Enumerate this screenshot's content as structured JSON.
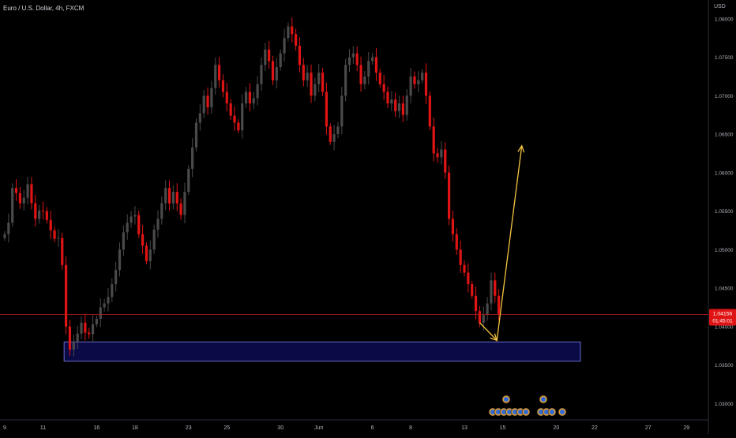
{
  "header": {
    "symbol_title": "Euro / U.S. Dollar, 4h, FXCM",
    "currency": "USD"
  },
  "price_tag": {
    "price": "1.04156",
    "countdown": "01:45:01"
  },
  "colors": {
    "background": "#000000",
    "up_candle": "#4a4a4a",
    "down_candle": "#e01414",
    "zone_fill": "#0b0b4a",
    "zone_border": "#6a6ac8",
    "arrow": "#f5c542",
    "price_line": "#b71c1c",
    "price_tag_bg": "#e01414"
  },
  "chart_data": {
    "type": "candlestick",
    "symbol": "EUR/USD",
    "timeframe": "4h",
    "source": "FXCM",
    "ylim": [
      1.029,
      1.081
    ],
    "y_ticks": [
      {
        "value": 1.03,
        "label": "1.03000"
      },
      {
        "value": 1.035,
        "label": "1.03500"
      },
      {
        "value": 1.04,
        "label": "1.04000"
      },
      {
        "value": 1.045,
        "label": "1.04500"
      },
      {
        "value": 1.05,
        "label": "1.05000"
      },
      {
        "value": 1.055,
        "label": "1.05500"
      },
      {
        "value": 1.06,
        "label": "1.06000"
      },
      {
        "value": 1.065,
        "label": "1.06500"
      },
      {
        "value": 1.07,
        "label": "1.07000"
      },
      {
        "value": 1.075,
        "label": "1.07500"
      },
      {
        "value": 1.08,
        "label": "1.08000"
      }
    ],
    "x_ticks": [
      {
        "index": 0,
        "label": "9"
      },
      {
        "index": 10,
        "label": "11"
      },
      {
        "index": 24,
        "label": "16"
      },
      {
        "index": 34,
        "label": "18"
      },
      {
        "index": 48,
        "label": "23"
      },
      {
        "index": 58,
        "label": "25"
      },
      {
        "index": 72,
        "label": "30"
      },
      {
        "index": 82,
        "label": "Jun"
      },
      {
        "index": 96,
        "label": "6"
      },
      {
        "index": 106,
        "label": "8"
      },
      {
        "index": 120,
        "label": "13"
      },
      {
        "index": 130,
        "label": "15"
      },
      {
        "index": 144,
        "label": "20"
      },
      {
        "index": 154,
        "label": "22"
      },
      {
        "index": 168,
        "label": "27"
      },
      {
        "index": 178,
        "label": "29"
      }
    ],
    "waypoints": [
      [
        0,
        1.052
      ],
      [
        1,
        1.0535
      ],
      [
        2,
        1.058
      ],
      [
        4,
        1.056
      ],
      [
        6,
        1.0585
      ],
      [
        8,
        1.054
      ],
      [
        10,
        1.055
      ],
      [
        12,
        1.0525
      ],
      [
        14,
        1.0515
      ],
      [
        15,
        1.048
      ],
      [
        16,
        1.04
      ],
      [
        17,
        1.037
      ],
      [
        18,
        1.038
      ],
      [
        20,
        1.0405
      ],
      [
        22,
        1.039
      ],
      [
        24,
        1.041
      ],
      [
        26,
        1.043
      ],
      [
        28,
        1.0455
      ],
      [
        30,
        1.05
      ],
      [
        32,
        1.0535
      ],
      [
        34,
        1.0545
      ],
      [
        35,
        1.052
      ],
      [
        36,
        1.0505
      ],
      [
        37,
        1.0485
      ],
      [
        38,
        1.05
      ],
      [
        40,
        1.054
      ],
      [
        42,
        1.058
      ],
      [
        43,
        1.056
      ],
      [
        44,
        1.0575
      ],
      [
        45,
        1.056
      ],
      [
        46,
        1.0545
      ],
      [
        47,
        1.0575
      ],
      [
        48,
        1.0605
      ],
      [
        50,
        1.0665
      ],
      [
        52,
        1.07
      ],
      [
        53,
        1.0685
      ],
      [
        54,
        1.071
      ],
      [
        55,
        1.074
      ],
      [
        56,
        1.072
      ],
      [
        57,
        1.0705
      ],
      [
        58,
        1.069
      ],
      [
        60,
        1.0665
      ],
      [
        61,
        1.0655
      ],
      [
        62,
        1.069
      ],
      [
        63,
        1.0705
      ],
      [
        64,
        1.069
      ],
      [
        66,
        1.0715
      ],
      [
        67,
        1.074
      ],
      [
        68,
        1.076
      ],
      [
        69,
        1.0745
      ],
      [
        70,
        1.072
      ],
      [
        72,
        1.0755
      ],
      [
        73,
        1.0775
      ],
      [
        74,
        1.079
      ],
      [
        75,
        1.078
      ],
      [
        76,
        1.0765
      ],
      [
        77,
        1.074
      ],
      [
        78,
        1.072
      ],
      [
        79,
        1.073
      ],
      [
        80,
        1.07
      ],
      [
        81,
        1.0715
      ],
      [
        82,
        1.073
      ],
      [
        83,
        1.0705
      ],
      [
        84,
        1.066
      ],
      [
        85,
        1.064
      ],
      [
        86,
        1.065
      ],
      [
        87,
        1.066
      ],
      [
        88,
        1.07
      ],
      [
        89,
        1.074
      ],
      [
        90,
        1.075
      ],
      [
        91,
        1.0755
      ],
      [
        92,
        1.074
      ],
      [
        93,
        1.0715
      ],
      [
        94,
        1.0725
      ],
      [
        95,
        1.0745
      ],
      [
        96,
        1.075
      ],
      [
        97,
        1.073
      ],
      [
        98,
        1.0715
      ],
      [
        99,
        1.0705
      ],
      [
        100,
        1.069
      ],
      [
        101,
        1.0695
      ],
      [
        102,
        1.068
      ],
      [
        103,
        1.069
      ],
      [
        104,
        1.0675
      ],
      [
        105,
        1.07
      ],
      [
        106,
        1.0725
      ],
      [
        107,
        1.0715
      ],
      [
        108,
        1.072
      ],
      [
        109,
        1.073
      ],
      [
        110,
        1.07
      ],
      [
        111,
        1.066
      ],
      [
        112,
        1.0625
      ],
      [
        113,
        1.062
      ],
      [
        114,
        1.063
      ],
      [
        115,
        1.06
      ],
      [
        116,
        1.054
      ],
      [
        117,
        1.052
      ],
      [
        118,
        1.05
      ],
      [
        119,
        1.048
      ],
      [
        120,
        1.047
      ],
      [
        121,
        1.0455
      ],
      [
        122,
        1.044
      ],
      [
        123,
        1.042
      ],
      [
        124,
        1.0405
      ],
      [
        125,
        1.0415
      ],
      [
        126,
        1.043
      ],
      [
        127,
        1.046
      ],
      [
        128,
        1.044
      ],
      [
        129,
        1.0416
      ]
    ],
    "demand_zone": {
      "from_index": 15.5,
      "to_index": 128,
      "price_top": 1.038,
      "price_bottom": 1.0355
    },
    "forecast_arrow": {
      "points": [
        [
          124,
          1.0405
        ],
        [
          128.5,
          1.0382
        ],
        [
          135,
          1.0635
        ]
      ]
    },
    "last_price": 1.04156
  }
}
